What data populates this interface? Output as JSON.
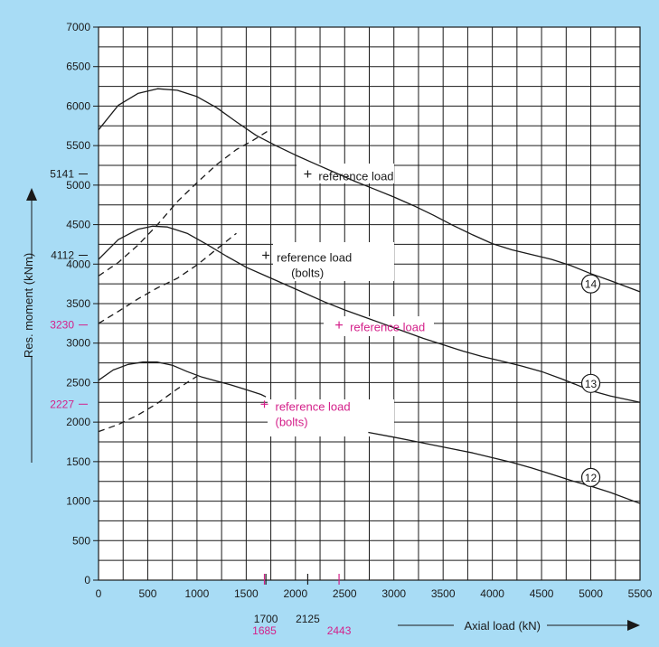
{
  "colors": {
    "background": "#a8dcf5",
    "plot_background": "#ffffff",
    "ink": "#1a1a1a",
    "highlight": "#d4208a"
  },
  "chart_data": {
    "type": "line",
    "xlabel": "Axial load (kN)",
    "ylabel": "Res. moment (kNm)",
    "xlim": [
      0,
      5500
    ],
    "ylim": [
      0,
      7000
    ],
    "x_ticks": [
      0,
      500,
      1000,
      1500,
      2000,
      2500,
      3000,
      3500,
      4000,
      4500,
      5000,
      5500
    ],
    "y_ticks": [
      0,
      500,
      1000,
      1500,
      2000,
      2500,
      3000,
      3500,
      4000,
      4500,
      5000,
      5500,
      6000,
      6500,
      7000
    ],
    "grid": true,
    "series": [
      {
        "name": "14",
        "style": "solid",
        "points": [
          [
            0,
            5700
          ],
          [
            200,
            6010
          ],
          [
            400,
            6160
          ],
          [
            600,
            6220
          ],
          [
            800,
            6200
          ],
          [
            1000,
            6120
          ],
          [
            1200,
            5980
          ],
          [
            1400,
            5800
          ],
          [
            1600,
            5630
          ],
          [
            1800,
            5500
          ],
          [
            2000,
            5380
          ],
          [
            2200,
            5270
          ],
          [
            2400,
            5160
          ],
          [
            2600,
            5050
          ],
          [
            2800,
            4950
          ],
          [
            3000,
            4850
          ],
          [
            3200,
            4740
          ],
          [
            3400,
            4620
          ],
          [
            3600,
            4490
          ],
          [
            3800,
            4370
          ],
          [
            4000,
            4260
          ],
          [
            4200,
            4180
          ],
          [
            4400,
            4120
          ],
          [
            4600,
            4060
          ],
          [
            4800,
            3980
          ],
          [
            5000,
            3880
          ],
          [
            5200,
            3790
          ],
          [
            5500,
            3650
          ]
        ]
      },
      {
        "name": "13",
        "style": "solid",
        "points": [
          [
            0,
            4060
          ],
          [
            200,
            4310
          ],
          [
            400,
            4440
          ],
          [
            550,
            4480
          ],
          [
            700,
            4470
          ],
          [
            900,
            4390
          ],
          [
            1100,
            4250
          ],
          [
            1300,
            4100
          ],
          [
            1500,
            3960
          ],
          [
            1700,
            3850
          ],
          [
            1900,
            3740
          ],
          [
            2100,
            3630
          ],
          [
            2300,
            3520
          ],
          [
            2500,
            3420
          ],
          [
            2700,
            3330
          ],
          [
            2900,
            3240
          ],
          [
            3100,
            3150
          ],
          [
            3300,
            3060
          ],
          [
            3500,
            2980
          ],
          [
            3700,
            2900
          ],
          [
            3900,
            2830
          ],
          [
            4100,
            2770
          ],
          [
            4300,
            2710
          ],
          [
            4500,
            2640
          ],
          [
            4700,
            2550
          ],
          [
            4900,
            2450
          ],
          [
            5000,
            2400
          ],
          [
            5200,
            2330
          ],
          [
            5500,
            2250
          ]
        ]
      },
      {
        "name": "12",
        "style": "solid",
        "points": [
          [
            0,
            2530
          ],
          [
            150,
            2660
          ],
          [
            300,
            2730
          ],
          [
            450,
            2760
          ],
          [
            600,
            2760
          ],
          [
            750,
            2720
          ],
          [
            900,
            2640
          ],
          [
            1050,
            2570
          ],
          [
            1200,
            2520
          ],
          [
            1350,
            2470
          ],
          [
            1500,
            2410
          ],
          [
            1650,
            2350
          ],
          [
            1700,
            2320
          ]
        ]
      },
      {
        "name": "12",
        "style": "solid",
        "points": [
          [
            2740,
            1870
          ],
          [
            3000,
            1810
          ],
          [
            3200,
            1760
          ],
          [
            3400,
            1710
          ],
          [
            3600,
            1660
          ],
          [
            3800,
            1610
          ],
          [
            4000,
            1550
          ],
          [
            4200,
            1490
          ],
          [
            4400,
            1420
          ],
          [
            4600,
            1340
          ],
          [
            4800,
            1260
          ],
          [
            5000,
            1190
          ],
          [
            5200,
            1110
          ],
          [
            5500,
            970
          ]
        ]
      },
      {
        "name": "14",
        "style": "dashed",
        "points": [
          [
            0,
            3850
          ],
          [
            200,
            4020
          ],
          [
            400,
            4240
          ],
          [
            600,
            4500
          ],
          [
            800,
            4790
          ],
          [
            1000,
            5030
          ],
          [
            1200,
            5260
          ],
          [
            1400,
            5450
          ],
          [
            1560,
            5560
          ],
          [
            1740,
            5700
          ]
        ]
      },
      {
        "name": "13",
        "style": "dashed",
        "points": [
          [
            0,
            3250
          ],
          [
            200,
            3400
          ],
          [
            400,
            3560
          ],
          [
            600,
            3700
          ],
          [
            800,
            3820
          ],
          [
            1000,
            3990
          ],
          [
            1200,
            4190
          ],
          [
            1400,
            4390
          ]
        ]
      },
      {
        "name": "12",
        "style": "dashed",
        "points": [
          [
            0,
            1880
          ],
          [
            200,
            1970
          ],
          [
            400,
            2090
          ],
          [
            600,
            2240
          ],
          [
            800,
            2420
          ],
          [
            1000,
            2580
          ]
        ]
      }
    ],
    "curve_labels": [
      {
        "text": "14",
        "x": 5000,
        "y": 3750
      },
      {
        "text": "13",
        "x": 5000,
        "y": 2490
      },
      {
        "text": "12",
        "x": 5000,
        "y": 1300
      }
    ],
    "reference_points": [
      {
        "x": 2125,
        "y": 5141,
        "label": "reference load",
        "color": "ink"
      },
      {
        "x": 1700,
        "y": 4112,
        "label": "reference load\n(bolts)",
        "color": "ink"
      },
      {
        "x": 2443,
        "y": 3230,
        "label": "reference load",
        "color": "highlight"
      },
      {
        "x": 1685,
        "y": 2227,
        "label": "reference load\n(bolts)",
        "color": "highlight"
      }
    ],
    "extra_y_labels": [
      {
        "value": 5141,
        "text": "5141",
        "color": "ink"
      },
      {
        "value": 4112,
        "text": "4112",
        "color": "ink"
      },
      {
        "value": 3230,
        "text": "3230",
        "color": "highlight"
      },
      {
        "value": 2227,
        "text": "2227",
        "color": "highlight"
      }
    ],
    "extra_x_labels": [
      {
        "value": 1700,
        "text": "1700",
        "color": "ink"
      },
      {
        "value": 2125,
        "text": "2125",
        "color": "ink"
      },
      {
        "value": 1685,
        "text": "1685",
        "color": "highlight"
      },
      {
        "value": 2443,
        "text": "2443",
        "color": "highlight"
      }
    ]
  }
}
